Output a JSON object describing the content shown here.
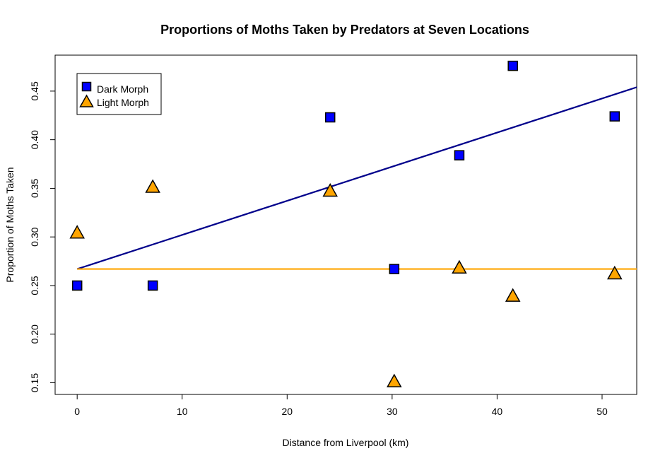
{
  "chart_data": {
    "type": "scatter",
    "title": "Proportions of Moths Taken by Predators at Seven Locations",
    "xlabel": "Distance from Liverpool (km)",
    "ylabel": "Proportion of Moths Taken",
    "xlim": [
      -2.1,
      53.3
    ],
    "ylim": [
      0.138,
      0.487
    ],
    "xticks": [
      0,
      10,
      20,
      30,
      40,
      50
    ],
    "yticks": [
      0.15,
      0.2,
      0.25,
      0.3,
      0.35,
      0.4,
      0.45
    ],
    "xtick_labels": [
      "0",
      "10",
      "20",
      "30",
      "40",
      "50"
    ],
    "ytick_labels": [
      "0.15",
      "0.20",
      "0.25",
      "0.30",
      "0.35",
      "0.40",
      "0.45"
    ],
    "grid": false,
    "legend_position": "top-left",
    "series": [
      {
        "name": "Dark Morph",
        "marker": "square",
        "color": "#0000ff",
        "x": [
          0,
          7.2,
          24.1,
          30.2,
          36.4,
          41.5,
          51.2
        ],
        "y": [
          0.25,
          0.25,
          0.423,
          0.267,
          0.384,
          0.476,
          0.424
        ]
      },
      {
        "name": "Light Morph",
        "marker": "triangle",
        "color": "#ffa500",
        "x": [
          0,
          7.2,
          24.1,
          30.2,
          36.4,
          41.5,
          51.2
        ],
        "y": [
          0.304,
          0.351,
          0.347,
          0.151,
          0.268,
          0.239,
          0.262
        ]
      }
    ],
    "fit_lines": [
      {
        "series": "Dark Morph",
        "color": "#00008b",
        "x": [
          0,
          53.3
        ],
        "y": [
          0.267,
          0.454
        ]
      },
      {
        "series": "Light Morph",
        "color": "#ffa500",
        "x": [
          0,
          53.3
        ],
        "y": [
          0.267,
          0.267
        ]
      }
    ]
  }
}
